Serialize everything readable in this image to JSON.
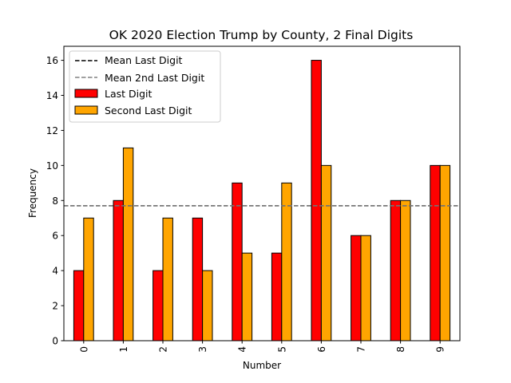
{
  "chart_data": {
    "type": "bar",
    "title": "OK 2020 Election Trump by County, 2 Final Digits",
    "xlabel": "Number",
    "ylabel": "Frequency",
    "categories": [
      "0",
      "1",
      "2",
      "3",
      "4",
      "5",
      "6",
      "7",
      "8",
      "9"
    ],
    "series": [
      {
        "name": "Last Digit",
        "color": "#ff0000",
        "values": [
          4,
          8,
          4,
          7,
          9,
          5,
          16,
          6,
          8,
          10
        ]
      },
      {
        "name": "Second Last Digit",
        "color": "#ffa500",
        "values": [
          7,
          11,
          7,
          4,
          5,
          9,
          10,
          6,
          8,
          10
        ]
      }
    ],
    "reference_lines": [
      {
        "name": "Mean Last Digit",
        "value": 7.7,
        "color": "#000000",
        "style": "dashed"
      },
      {
        "name": "Mean 2nd Last Digit",
        "value": 7.7,
        "color": "#808080",
        "style": "dashed"
      }
    ],
    "ylim": [
      0,
      16.8
    ],
    "yticks": [
      0,
      2,
      4,
      6,
      8,
      10,
      12,
      14,
      16
    ],
    "grid": false,
    "legend_position": "top-left",
    "x_tick_rotation": "vertical"
  }
}
